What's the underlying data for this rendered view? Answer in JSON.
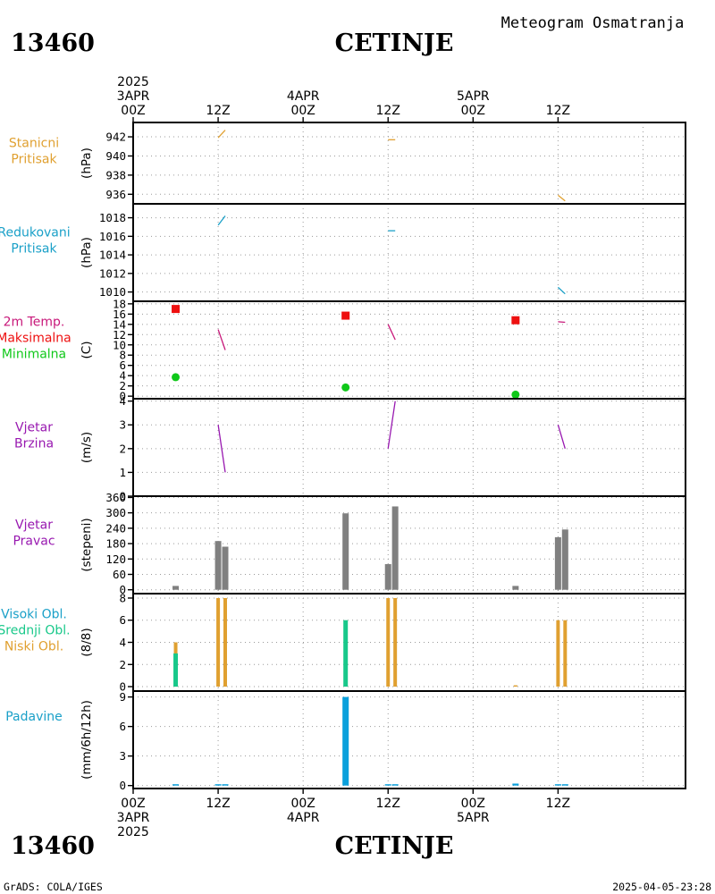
{
  "header": {
    "station_id": "13460",
    "station_name": "CETINJE",
    "chart_title": "Meteogram Osmatranja"
  },
  "footer": {
    "credit": "GrADS: COLA/IGES",
    "timestamp": "2025-04-05-23:28"
  },
  "colors": {
    "orange": "#e0a030",
    "cyan": "#1aa0c8",
    "magenta": "#c8187a",
    "red": "#ee1010",
    "green": "#10c81a",
    "purple": "#9818b0",
    "gray": "#808080",
    "teal": "#18c88a",
    "blue": "#0aa0dc"
  },
  "chart_data": {
    "type": "meteogram",
    "time_axis": {
      "start": "2025-04-03 00Z",
      "end": "2025-04-06 06Z",
      "top_labels": [
        {
          "hour": 0,
          "lines": [
            "2025",
            "3APR",
            "00Z"
          ]
        },
        {
          "hour": 12,
          "lines": [
            "12Z"
          ]
        },
        {
          "hour": 24,
          "lines": [
            "4APR",
            "00Z"
          ]
        },
        {
          "hour": 36,
          "lines": [
            "12Z"
          ]
        },
        {
          "hour": 48,
          "lines": [
            "5APR",
            "00Z"
          ]
        },
        {
          "hour": 60,
          "lines": [
            "12Z"
          ]
        }
      ],
      "bottom_labels": [
        {
          "hour": 0,
          "lines": [
            "00Z",
            "3APR",
            "2025"
          ]
        },
        {
          "hour": 12,
          "lines": [
            "12Z"
          ]
        },
        {
          "hour": 24,
          "lines": [
            "00Z",
            "4APR"
          ]
        },
        {
          "hour": 36,
          "lines": [
            "12Z"
          ]
        },
        {
          "hour": 48,
          "lines": [
            "00Z",
            "5APR"
          ]
        },
        {
          "hour": 60,
          "lines": [
            "12Z"
          ]
        }
      ]
    },
    "panels": [
      {
        "id": "station_pressure",
        "type": "line",
        "labels": [
          {
            "text": "Stanicni",
            "color": "#e0a030"
          },
          {
            "text": "Pritisak",
            "color": "#e0a030"
          }
        ],
        "unit": "(hPa)",
        "ylim": [
          935,
          943.5
        ],
        "yticks": [
          936,
          938,
          940,
          942
        ],
        "series": [
          {
            "color": "#e0a030",
            "segments": [
              [
                [
                  12,
                  941.9
                ],
                [
                  13,
                  942.7
                ]
              ],
              [
                [
                  36,
                  941.7
                ],
                [
                  37,
                  941.7
                ]
              ],
              [
                [
                  60,
                  935.9
                ],
                [
                  61,
                  935.3
                ]
              ]
            ]
          }
        ]
      },
      {
        "id": "reduced_pressure",
        "type": "line",
        "labels": [
          {
            "text": "Redukovani",
            "color": "#1aa0c8"
          },
          {
            "text": "Pritisak",
            "color": "#1aa0c8"
          }
        ],
        "unit": "(hPa)",
        "ylim": [
          1009,
          1019.5
        ],
        "yticks": [
          1010,
          1012,
          1014,
          1016,
          1018
        ],
        "series": [
          {
            "color": "#1aa0c8",
            "segments": [
              [
                [
                  12,
                  1017.2
                ],
                [
                  13,
                  1018.2
                ]
              ],
              [
                [
                  36,
                  1016.6
                ],
                [
                  37,
                  1016.6
                ]
              ],
              [
                [
                  60,
                  1010.5
                ],
                [
                  61,
                  1009.8
                ]
              ]
            ]
          }
        ]
      },
      {
        "id": "temperature",
        "type": "line",
        "labels": [
          {
            "text": "2m Temp.",
            "color": "#c8187a"
          },
          {
            "text": "Maksimalna",
            "color": "#ee1010"
          },
          {
            "text": "Minimalna",
            "color": "#10c81a"
          }
        ],
        "unit": "(C)",
        "ylim": [
          -0.5,
          18.5
        ],
        "yticks": [
          0,
          2,
          4,
          6,
          8,
          10,
          12,
          14,
          16,
          18
        ],
        "series": [
          {
            "color": "#c8187a",
            "segments": [
              [
                [
                  12,
                  13
                ],
                [
                  13,
                  9
                ]
              ],
              [
                [
                  36,
                  14
                ],
                [
                  37,
                  11
                ]
              ],
              [
                [
                  60,
                  14.5
                ],
                [
                  61,
                  14.4
                ]
              ]
            ]
          }
        ],
        "max_points": [
          {
            "hour": 6,
            "value": 17
          },
          {
            "hour": 30,
            "value": 15.7
          },
          {
            "hour": 54,
            "value": 14.8
          }
        ],
        "min_points": [
          {
            "hour": 6,
            "value": 3.7
          },
          {
            "hour": 30,
            "value": 1.7
          },
          {
            "hour": 54,
            "value": 0.3
          }
        ]
      },
      {
        "id": "wind_speed",
        "type": "line",
        "labels": [
          {
            "text": "Vjetar",
            "color": "#9818b0"
          },
          {
            "text": "Brzina",
            "color": "#9818b0"
          }
        ],
        "unit": "(m/s)",
        "ylim": [
          0,
          4.1
        ],
        "yticks": [
          0,
          1,
          2,
          3,
          4
        ],
        "series": [
          {
            "color": "#9818b0",
            "segments": [
              [
                [
                  12,
                  3
                ],
                [
                  13,
                  1
                ]
              ],
              [
                [
                  36,
                  2
                ],
                [
                  37,
                  4
                ]
              ],
              [
                [
                  60,
                  3
                ],
                [
                  61,
                  2
                ]
              ]
            ]
          }
        ]
      },
      {
        "id": "wind_direction",
        "type": "bar",
        "labels": [
          {
            "text": "Vjetar",
            "color": "#9818b0"
          },
          {
            "text": "Pravac",
            "color": "#9818b0"
          }
        ],
        "unit": "(stepeni)",
        "ylim": [
          -15,
          365
        ],
        "yticks": [
          0,
          60,
          120,
          180,
          240,
          300,
          360
        ],
        "ytick_labels": [
          "0",
          "60",
          "120",
          "180",
          "240",
          "300",
          "360"
        ],
        "bars": [
          {
            "hour": 6,
            "value": 15
          },
          {
            "hour": 12,
            "value": 190
          },
          {
            "hour": 13,
            "value": 168
          },
          {
            "hour": 30,
            "value": 298
          },
          {
            "hour": 36,
            "value": 100
          },
          {
            "hour": 37,
            "value": 325
          },
          {
            "hour": 54,
            "value": 15
          },
          {
            "hour": 60,
            "value": 205
          },
          {
            "hour": 61,
            "value": 235
          }
        ],
        "bar_color": "#808080"
      },
      {
        "id": "cloud_cover",
        "type": "bar",
        "labels": [
          {
            "text": "Visoki Obl.",
            "color": "#1aa0c8"
          },
          {
            "text": "Srednji Obl.",
            "color": "#18c88a"
          },
          {
            "text": "Niski Obl.",
            "color": "#e0a030"
          }
        ],
        "unit": "(8/8)",
        "ylim": [
          -0.4,
          8.4
        ],
        "yticks": [
          0,
          2,
          4,
          6,
          8
        ],
        "series": [
          {
            "name": "Niski Obl.",
            "color": "#e0a030",
            "bars": [
              {
                "hour": 6,
                "value": 4
              },
              {
                "hour": 12,
                "value": 8
              },
              {
                "hour": 13,
                "value": 8
              },
              {
                "hour": 36,
                "value": 8
              },
              {
                "hour": 37,
                "value": 8
              },
              {
                "hour": 54,
                "value": 0
              },
              {
                "hour": 60,
                "value": 6
              },
              {
                "hour": 61,
                "value": 6
              }
            ]
          },
          {
            "name": "Srednji Obl.",
            "color": "#18c88a",
            "bars": [
              {
                "hour": 6,
                "value": 3
              },
              {
                "hour": 30,
                "value": 6
              }
            ]
          },
          {
            "name": "Visoki Obl.",
            "color": "#1aa0c8",
            "bars": []
          }
        ]
      },
      {
        "id": "precipitation",
        "type": "bar",
        "labels": [
          {
            "text": "Padavine",
            "color": "#1aa0c8"
          }
        ],
        "unit": "(mm/6h/12h)",
        "ylim": [
          -0.3,
          9.6
        ],
        "yticks": [
          0,
          3,
          6,
          9
        ],
        "bars": [
          {
            "hour": 6,
            "value": 0.1
          },
          {
            "hour": 12,
            "value": 0.1
          },
          {
            "hour": 13,
            "value": 0.1
          },
          {
            "hour": 30,
            "value": 9
          },
          {
            "hour": 36,
            "value": 0.1
          },
          {
            "hour": 37,
            "value": 0.1
          },
          {
            "hour": 54,
            "value": 0.2
          },
          {
            "hour": 60,
            "value": 0.1
          },
          {
            "hour": 61,
            "value": 0.1
          }
        ],
        "bar_color": "#0aa0dc"
      }
    ]
  }
}
